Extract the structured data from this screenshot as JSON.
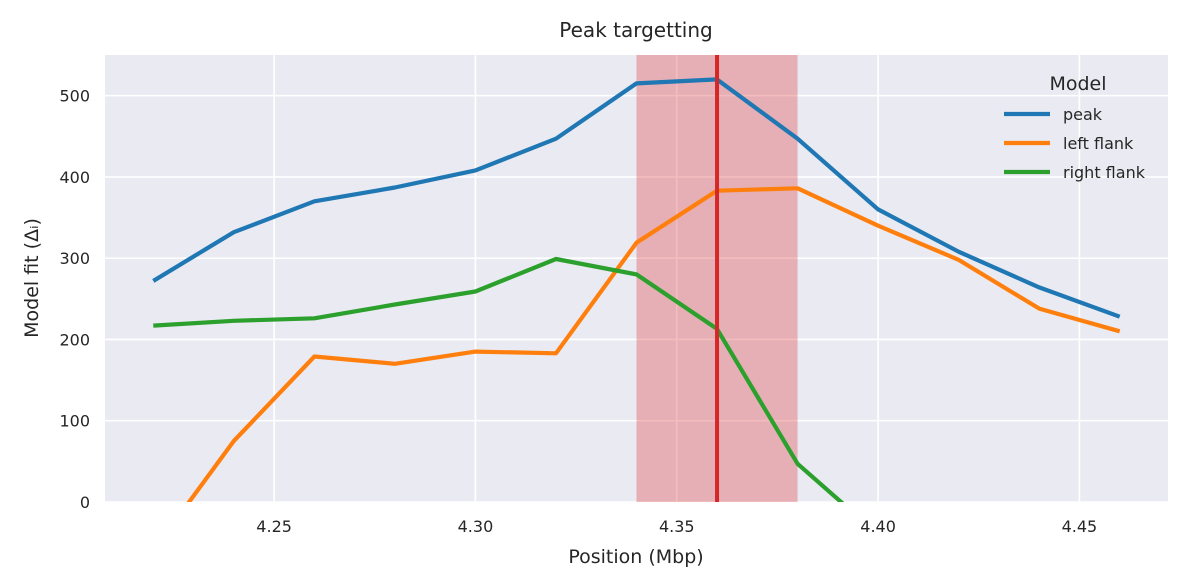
{
  "chart_data": {
    "type": "line",
    "title": "Peak targetting",
    "xlabel": "Position (Mbp)",
    "ylabel": "Model fit (Δᵢ)",
    "xlim": [
      4.208,
      4.472
    ],
    "ylim": [
      0,
      550
    ],
    "xticks": [
      4.25,
      4.3,
      4.35,
      4.4,
      4.45
    ],
    "xtick_labels": [
      "4.25",
      "4.30",
      "4.35",
      "4.40",
      "4.45"
    ],
    "yticks": [
      0,
      100,
      200,
      300,
      400,
      500
    ],
    "ytick_labels": [
      "0",
      "100",
      "200",
      "300",
      "400",
      "500"
    ],
    "grid": true,
    "background": "#eaeaf2",
    "legend": {
      "title": "Model",
      "placement": "top-right"
    },
    "highlight_band": {
      "x0": 4.34,
      "x1": 4.38,
      "color": "#e15759"
    },
    "vertical_line": {
      "x": 4.36,
      "color": "#d62728"
    },
    "series": [
      {
        "name": "peak",
        "color": "#1f77b4",
        "x": [
          4.22,
          4.24,
          4.26,
          4.28,
          4.3,
          4.32,
          4.34,
          4.36,
          4.38,
          4.4,
          4.42,
          4.44,
          4.46
        ],
        "y": [
          272,
          332,
          370,
          387,
          408,
          447,
          515,
          520,
          447,
          360,
          308,
          264,
          228
        ]
      },
      {
        "name": "left flank",
        "color": "#ff7f0e",
        "x": [
          4.22,
          4.24,
          4.26,
          4.28,
          4.3,
          4.32,
          4.34,
          4.36,
          4.38,
          4.4,
          4.42,
          4.44,
          4.46
        ],
        "y": [
          -60,
          75,
          179,
          170,
          185,
          183,
          319,
          383,
          386,
          340,
          298,
          238,
          210
        ]
      },
      {
        "name": "right flank",
        "color": "#2ca02c",
        "x": [
          4.22,
          4.24,
          4.26,
          4.28,
          4.3,
          4.32,
          4.34,
          4.36,
          4.38,
          4.4
        ],
        "y": [
          217,
          223,
          226,
          243,
          259,
          299,
          280,
          213,
          47,
          -40
        ]
      }
    ]
  }
}
